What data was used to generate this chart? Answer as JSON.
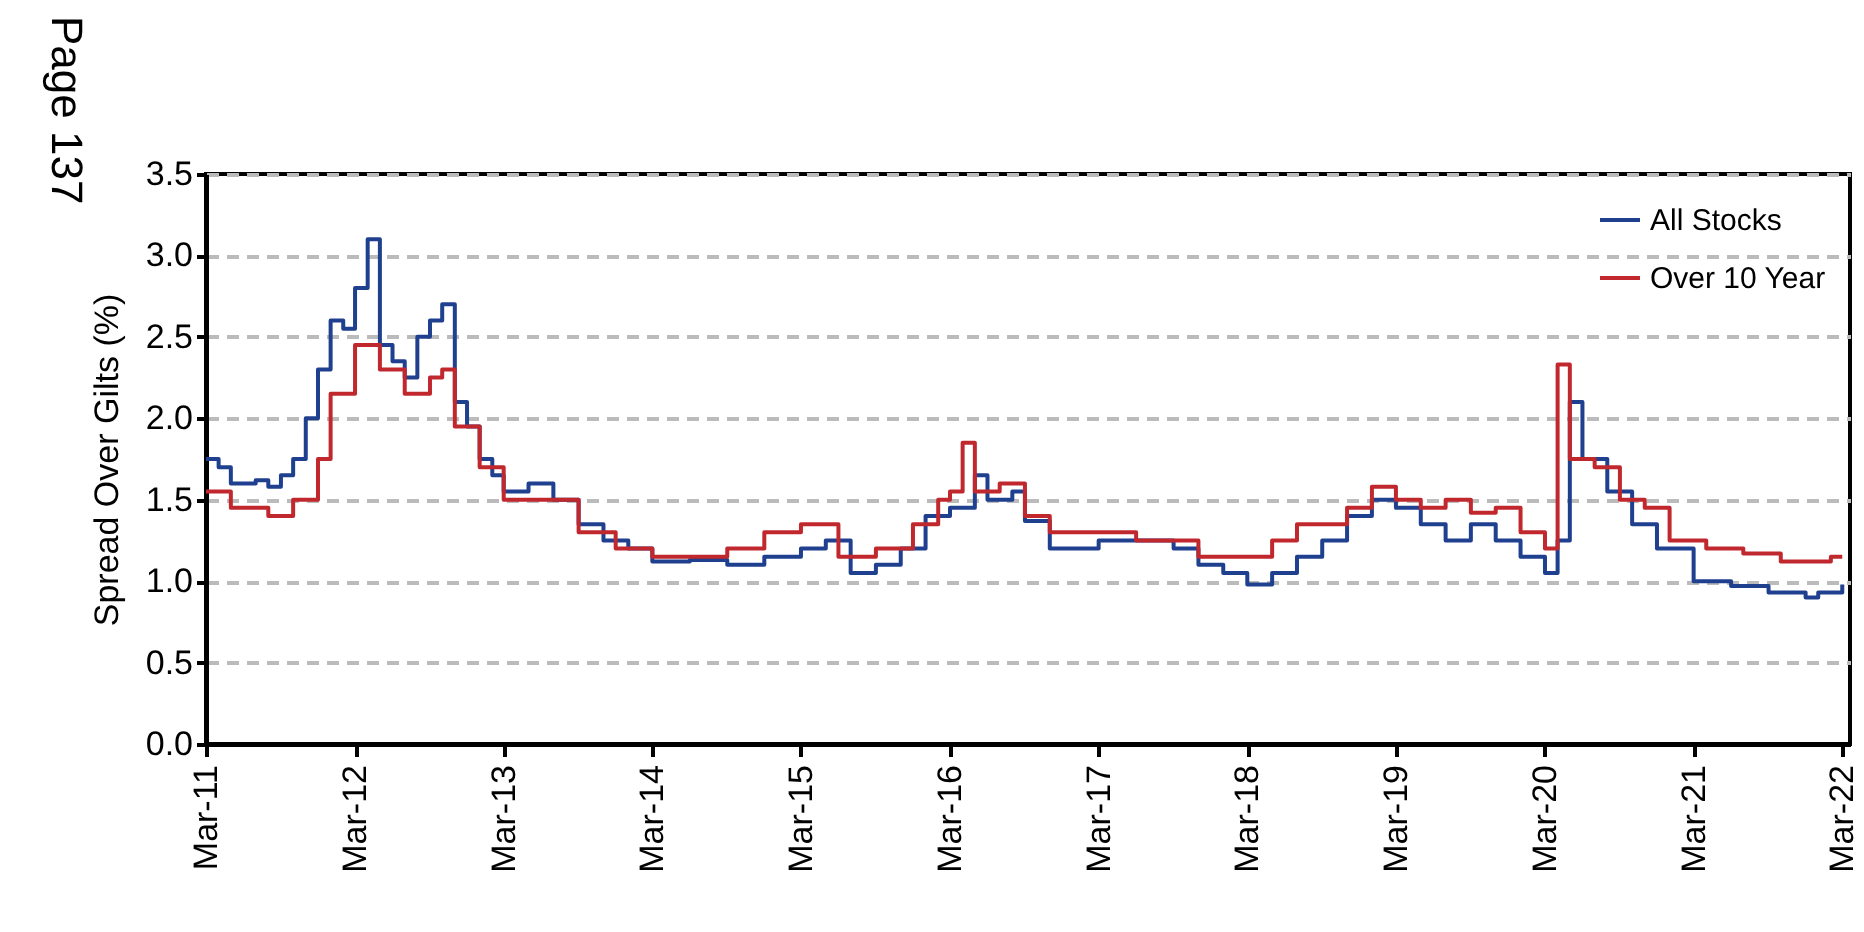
{
  "chart_data": {
    "type": "step",
    "ylabel": "Spread Over Gilts (%)",
    "annotations": [
      "Page 137"
    ],
    "xlim": [
      "2011-03-01",
      "2022-03-20"
    ],
    "ylim": [
      0,
      3.5
    ],
    "xticks": [
      {
        "value": "2011-03",
        "label": "Mar-11"
      },
      {
        "value": "2012-03",
        "label": "Mar-12"
      },
      {
        "value": "2013-03",
        "label": "Mar-13"
      },
      {
        "value": "2014-03",
        "label": "Mar-14"
      },
      {
        "value": "2015-03",
        "label": "Mar-15"
      },
      {
        "value": "2016-03",
        "label": "Mar-16"
      },
      {
        "value": "2017-03",
        "label": "Mar-17"
      },
      {
        "value": "2018-03",
        "label": "Mar-18"
      },
      {
        "value": "2019-03",
        "label": "Mar-19"
      },
      {
        "value": "2020-03",
        "label": "Mar-20"
      },
      {
        "value": "2021-03",
        "label": "Mar-21"
      },
      {
        "value": "2022-03",
        "label": "Mar-22"
      }
    ],
    "yticks": [
      {
        "value": 0,
        "label": "0.0"
      },
      {
        "value": 0.5,
        "label": "0.5"
      },
      {
        "value": 1,
        "label": "1.0"
      },
      {
        "value": 1.5,
        "label": "1.5"
      },
      {
        "value": 2,
        "label": "2.0"
      },
      {
        "value": 2.5,
        "label": "2.5"
      },
      {
        "value": 3,
        "label": "3.0"
      },
      {
        "value": 3.5,
        "label": "3.5"
      }
    ],
    "grid": "y",
    "legend": "top right",
    "series": [
      {
        "name": "All Stocks",
        "color": "#1f3f8f",
        "x": [
          "2011-03",
          "2011-04",
          "2011-05",
          "2011-07",
          "2011-08",
          "2011-09",
          "2011-10",
          "2011-11",
          "2011-12",
          "2012-01",
          "2012-02",
          "2012-03",
          "2012-04",
          "2012-05",
          "2012-06",
          "2012-07",
          "2012-08",
          "2012-09",
          "2012-10",
          "2012-11",
          "2012-12",
          "2013-01",
          "2013-02",
          "2013-03",
          "2013-05",
          "2013-07",
          "2013-09",
          "2013-11",
          "2014-01",
          "2014-03",
          "2014-06",
          "2014-09",
          "2014-12",
          "2015-03",
          "2015-05",
          "2015-07",
          "2015-09",
          "2015-11",
          "2016-01",
          "2016-03",
          "2016-05",
          "2016-06",
          "2016-08",
          "2016-09",
          "2016-11",
          "2017-03",
          "2017-06",
          "2017-09",
          "2017-11",
          "2018-01",
          "2018-03",
          "2018-05",
          "2018-07",
          "2018-09",
          "2018-11",
          "2019-01",
          "2019-03",
          "2019-05",
          "2019-07",
          "2019-09",
          "2019-11",
          "2020-01",
          "2020-03",
          "2020-04",
          "2020-05",
          "2020-06",
          "2020-08",
          "2020-10",
          "2020-12",
          "2021-03",
          "2021-06",
          "2021-09",
          "2021-12",
          "2022-01",
          "2022-03"
        ],
        "values": [
          1.75,
          1.7,
          1.6,
          1.62,
          1.58,
          1.65,
          1.75,
          2.0,
          2.3,
          2.6,
          2.55,
          2.8,
          3.1,
          2.45,
          2.35,
          2.25,
          2.5,
          2.6,
          2.7,
          2.1,
          1.95,
          1.75,
          1.65,
          1.55,
          1.6,
          1.5,
          1.35,
          1.25,
          1.2,
          1.12,
          1.13,
          1.1,
          1.15,
          1.2,
          1.25,
          1.05,
          1.1,
          1.2,
          1.4,
          1.45,
          1.65,
          1.5,
          1.55,
          1.37,
          1.2,
          1.25,
          1.25,
          1.2,
          1.1,
          1.05,
          0.98,
          1.05,
          1.15,
          1.25,
          1.4,
          1.5,
          1.45,
          1.35,
          1.25,
          1.35,
          1.25,
          1.15,
          1.05,
          1.25,
          2.1,
          1.75,
          1.55,
          1.35,
          1.2,
          1.0,
          0.97,
          0.93,
          0.9,
          0.93,
          0.98
        ]
      },
      {
        "name": "Over 10 Year",
        "color": "#c0282e",
        "x": [
          "2011-03",
          "2011-05",
          "2011-08",
          "2011-10",
          "2011-12",
          "2012-01",
          "2012-03",
          "2012-05",
          "2012-07",
          "2012-09",
          "2012-10",
          "2012-11",
          "2013-01",
          "2013-03",
          "2013-06",
          "2013-09",
          "2013-12",
          "2014-03",
          "2014-06",
          "2014-09",
          "2014-12",
          "2015-03",
          "2015-06",
          "2015-09",
          "2015-12",
          "2016-02",
          "2016-03",
          "2016-04",
          "2016-05",
          "2016-07",
          "2016-09",
          "2016-11",
          "2017-03",
          "2017-06",
          "2017-09",
          "2017-11",
          "2018-03",
          "2018-05",
          "2018-07",
          "2018-09",
          "2018-11",
          "2019-01",
          "2019-03",
          "2019-05",
          "2019-07",
          "2019-09",
          "2019-11",
          "2020-01",
          "2020-03",
          "2020-04",
          "2020-05",
          "2020-07",
          "2020-09",
          "2020-11",
          "2021-01",
          "2021-04",
          "2021-07",
          "2021-10",
          "2021-12",
          "2022-02",
          "2022-03"
        ],
        "values": [
          1.55,
          1.45,
          1.4,
          1.5,
          1.75,
          2.15,
          2.45,
          2.3,
          2.15,
          2.25,
          2.3,
          1.95,
          1.7,
          1.5,
          1.5,
          1.3,
          1.2,
          1.15,
          1.15,
          1.2,
          1.3,
          1.35,
          1.15,
          1.2,
          1.35,
          1.5,
          1.55,
          1.85,
          1.55,
          1.6,
          1.4,
          1.3,
          1.3,
          1.25,
          1.25,
          1.15,
          1.15,
          1.25,
          1.35,
          1.35,
          1.45,
          1.58,
          1.5,
          1.45,
          1.5,
          1.42,
          1.45,
          1.3,
          1.2,
          2.33,
          1.75,
          1.7,
          1.5,
          1.45,
          1.25,
          1.2,
          1.17,
          1.12,
          1.12,
          1.15,
          1.15
        ]
      }
    ]
  }
}
